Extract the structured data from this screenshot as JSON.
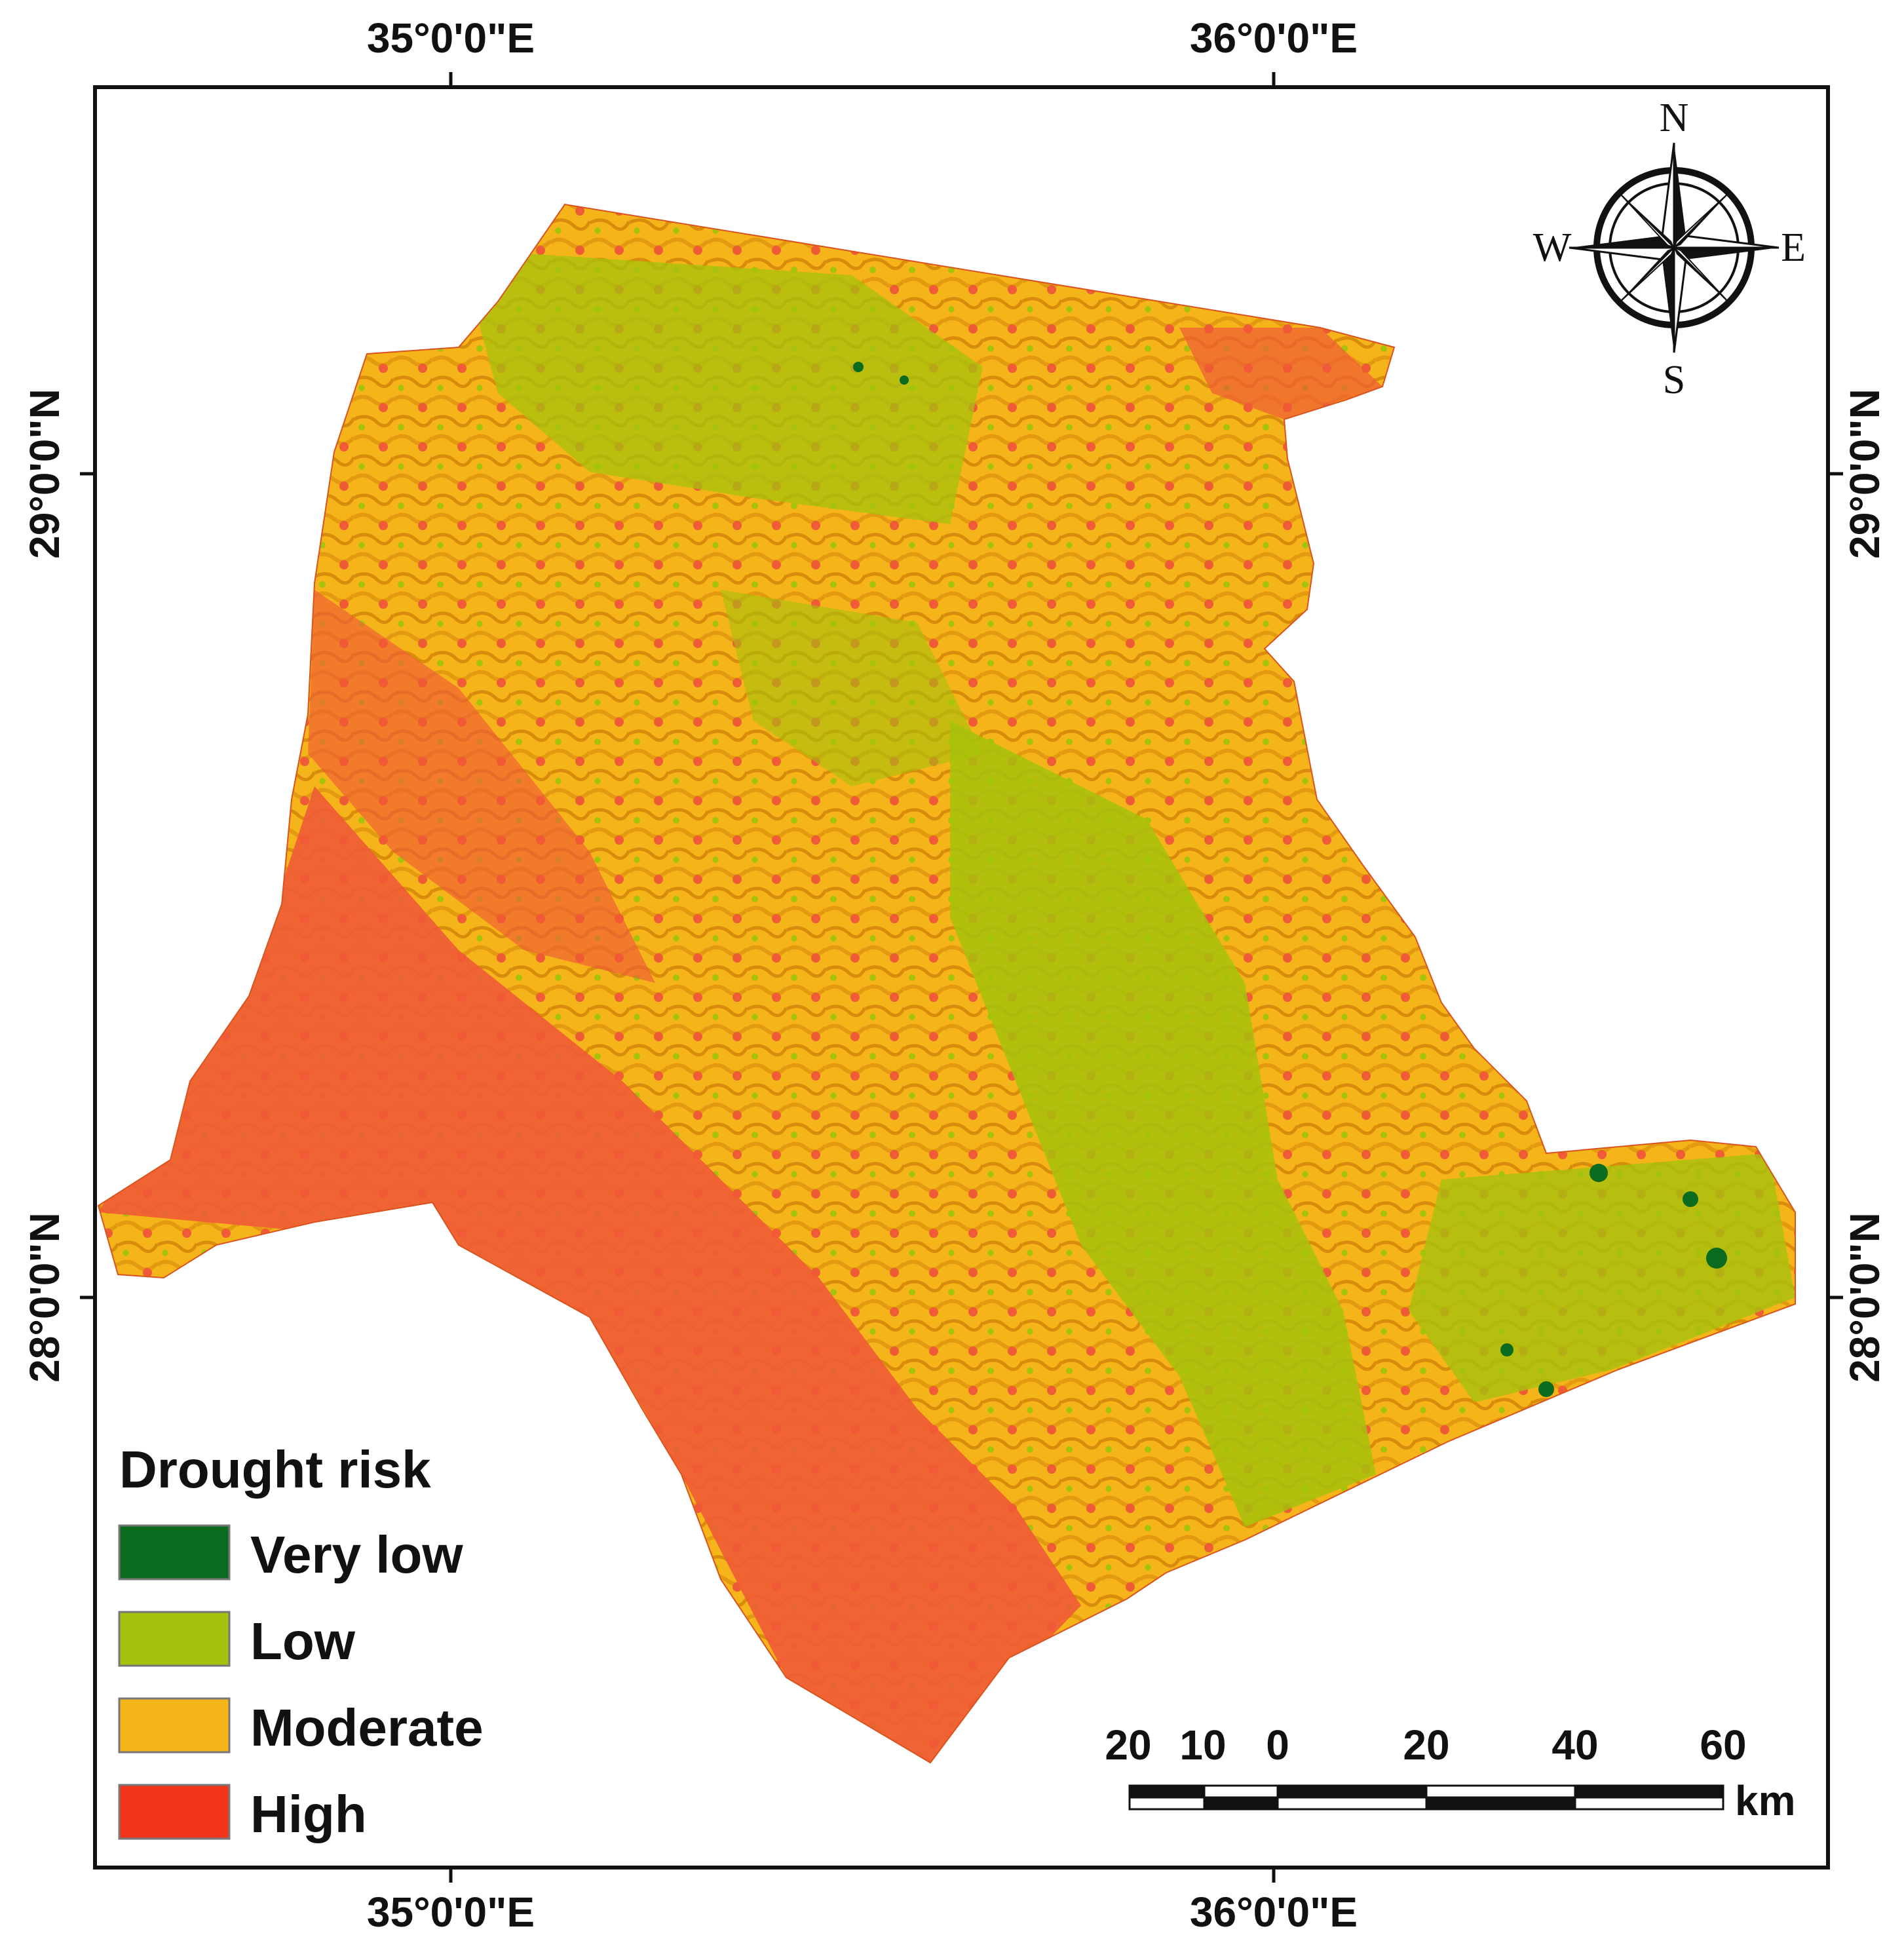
{
  "map": {
    "legend": {
      "title": "Drought risk",
      "items": [
        {
          "label": "Very low",
          "color": "#0b6b1e"
        },
        {
          "label": "Low",
          "color": "#a6c20c"
        },
        {
          "label": "Moderate",
          "color": "#f5b419"
        },
        {
          "label": "High",
          "color": "#ef5b36"
        }
      ]
    },
    "graticule": {
      "longitudes": [
        "35°0'0\"E",
        "36°0'0\"E"
      ],
      "latitudes": [
        "29°0'0\"N",
        "28°0'0\"N"
      ]
    },
    "compass": {
      "n": "N",
      "s": "S",
      "e": "E",
      "w": "W"
    },
    "scale_bar": {
      "ticks": [
        "20",
        "10",
        "0",
        "20",
        "40",
        "60"
      ],
      "unit": "km"
    }
  }
}
